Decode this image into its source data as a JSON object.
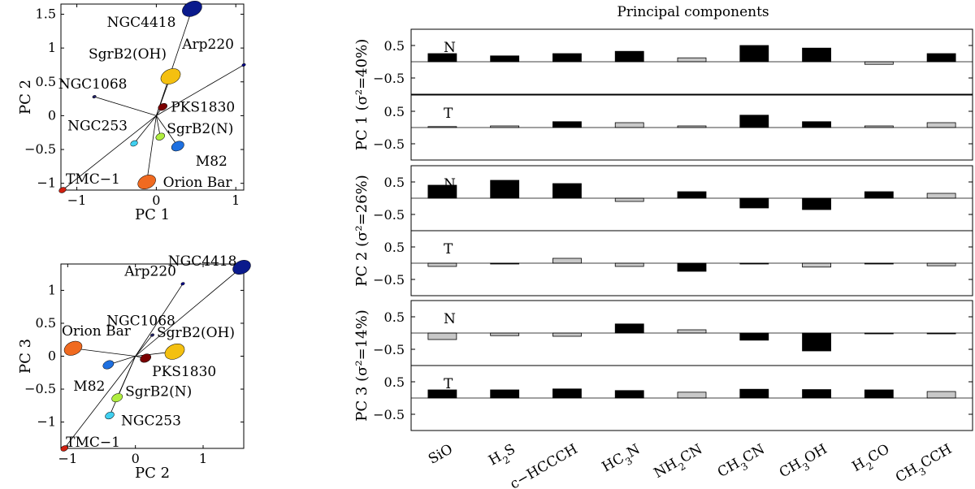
{
  "chart_data": [
    {
      "type": "scatter",
      "id": "pc1_pc2",
      "xlabel": "PC 1",
      "ylabel": "PC 2",
      "xlim": [
        -1.2,
        1.1
      ],
      "ylim": [
        -1.1,
        1.65
      ],
      "xticks": [
        -1,
        0,
        1
      ],
      "yticks": [
        -1,
        -0.5,
        0,
        0.5,
        1,
        1.5
      ],
      "xtick_labels": [
        "−1",
        "0",
        "1"
      ],
      "ytick_labels": [
        "−1",
        "−0.5",
        "0",
        "0.5",
        "1",
        "1.5"
      ],
      "points": [
        {
          "name": "NGC4418",
          "x": 0.45,
          "y": 1.58,
          "color": "#0a1a8c",
          "size": 11
        },
        {
          "name": "Arp220",
          "x": 1.1,
          "y": 0.75,
          "color": "#00008b",
          "size": 2
        },
        {
          "name": "SgrB2(OH)",
          "x": 0.18,
          "y": 0.58,
          "color": "#f4c010",
          "size": 11
        },
        {
          "name": "NGC1068",
          "x": -0.78,
          "y": 0.28,
          "color": "#222266",
          "size": 2
        },
        {
          "name": "PKS1830",
          "x": 0.08,
          "y": 0.13,
          "color": "#7a0000",
          "size": 5
        },
        {
          "name": "SgrB2(N)",
          "x": 0.05,
          "y": -0.31,
          "color": "#b0ee40",
          "size": 5
        },
        {
          "name": "NGC253",
          "x": -0.28,
          "y": -0.41,
          "color": "#40d0f0",
          "size": 4
        },
        {
          "name": "M82",
          "x": 0.27,
          "y": -0.45,
          "color": "#1e70e0",
          "size": 7
        },
        {
          "name": "Orion Bar",
          "x": -0.12,
          "y": -0.98,
          "color": "#f06a20",
          "size": 10
        },
        {
          "name": "TMC−1",
          "x": -1.18,
          "y": -1.1,
          "color": "#d02010",
          "size": 4
        }
      ]
    },
    {
      "type": "scatter",
      "id": "pc2_pc3",
      "xlabel": "PC 2",
      "ylabel": "PC 3",
      "xlim": [
        -1.1,
        1.6
      ],
      "ylim": [
        -1.4,
        1.4
      ],
      "xticks": [
        -1,
        0,
        1
      ],
      "yticks": [
        -1,
        -0.5,
        0,
        0.5,
        1
      ],
      "xtick_labels": [
        "−1",
        "0",
        "1"
      ],
      "ytick_labels": [
        "−1",
        "−0.5",
        "0",
        "0.5",
        "1"
      ],
      "points": [
        {
          "name": "NGC4418",
          "x": 1.57,
          "y": 1.35,
          "color": "#0a1a8c",
          "size": 10
        },
        {
          "name": "Arp220",
          "x": 0.7,
          "y": 1.1,
          "color": "#00008b",
          "size": 2
        },
        {
          "name": "NGC1068",
          "x": 0.25,
          "y": 0.32,
          "color": "#222266",
          "size": 2
        },
        {
          "name": "Orion Bar",
          "x": -0.92,
          "y": 0.12,
          "color": "#f06a20",
          "size": 10
        },
        {
          "name": "SgrB2(OH)",
          "x": 0.58,
          "y": 0.07,
          "color": "#f4c010",
          "size": 11
        },
        {
          "name": "PKS1830",
          "x": 0.15,
          "y": -0.03,
          "color": "#7a0000",
          "size": 6
        },
        {
          "name": "M82",
          "x": -0.4,
          "y": -0.13,
          "color": "#1e70e0",
          "size": 6
        },
        {
          "name": "SgrB2(N)",
          "x": -0.27,
          "y": -0.63,
          "color": "#b0ee40",
          "size": 6
        },
        {
          "name": "NGC253",
          "x": -0.38,
          "y": -0.9,
          "color": "#40d0f0",
          "size": 5
        },
        {
          "name": "TMC−1",
          "x": -1.05,
          "y": -1.4,
          "color": "#d02010",
          "size": 4
        }
      ]
    },
    {
      "type": "bar",
      "id": "principal_components",
      "title": "Principal components",
      "categories": [
        "SiO",
        "H2S",
        "c−HCCCH",
        "HC3N",
        "NH2CN",
        "CH3CN",
        "CH3OH",
        "H2CO",
        "CH3CCH"
      ],
      "yticks": [
        0.5,
        -0.5
      ],
      "ytick_labels": [
        "0.5",
        "−0.5"
      ],
      "ylim": [
        -1.0,
        1.0
      ],
      "colors": {
        "positive": "#000000",
        "negative": "#c8c8c8"
      },
      "panels": [
        {
          "label": "N",
          "group_label": "PC 1 (σ²=40%)",
          "values": [
            0.25,
            0.18,
            0.25,
            0.32,
            0.12,
            0.5,
            0.42,
            -0.08,
            0.25
          ],
          "dark": [
            1,
            1,
            1,
            1,
            0,
            1,
            1,
            0,
            1
          ]
        },
        {
          "label": "T",
          "values": [
            0.03,
            0.05,
            0.18,
            0.15,
            0.05,
            0.38,
            0.18,
            0.05,
            0.15
          ],
          "dark": [
            0,
            0,
            1,
            0,
            0,
            1,
            1,
            0,
            0
          ]
        },
        {
          "label": "N",
          "group_label": "PC 2 (σ²=26%)",
          "values": [
            0.4,
            0.55,
            0.45,
            -0.1,
            0.2,
            -0.3,
            -0.35,
            0.2,
            0.15
          ],
          "dark": [
            1,
            1,
            1,
            0,
            1,
            1,
            1,
            1,
            0
          ]
        },
        {
          "label": "T",
          "values": [
            -0.1,
            -0.02,
            0.15,
            -0.1,
            -0.25,
            -0.02,
            -0.12,
            -0.02,
            -0.08
          ],
          "dark": [
            0,
            1,
            0,
            0,
            1,
            1,
            0,
            1,
            0
          ]
        },
        {
          "label": "N",
          "group_label": "PC 3 (σ²=14%)",
          "values": [
            -0.2,
            -0.08,
            -0.1,
            0.28,
            0.1,
            -0.22,
            -0.55,
            -0.01,
            -0.01
          ],
          "dark": [
            0,
            0,
            0,
            1,
            0,
            1,
            1,
            1,
            1
          ]
        },
        {
          "label": "T",
          "values": [
            0.25,
            0.25,
            0.28,
            0.23,
            0.18,
            0.27,
            0.26,
            0.25,
            0.2
          ],
          "dark": [
            1,
            1,
            1,
            1,
            0,
            1,
            1,
            1,
            0
          ]
        }
      ]
    }
  ]
}
